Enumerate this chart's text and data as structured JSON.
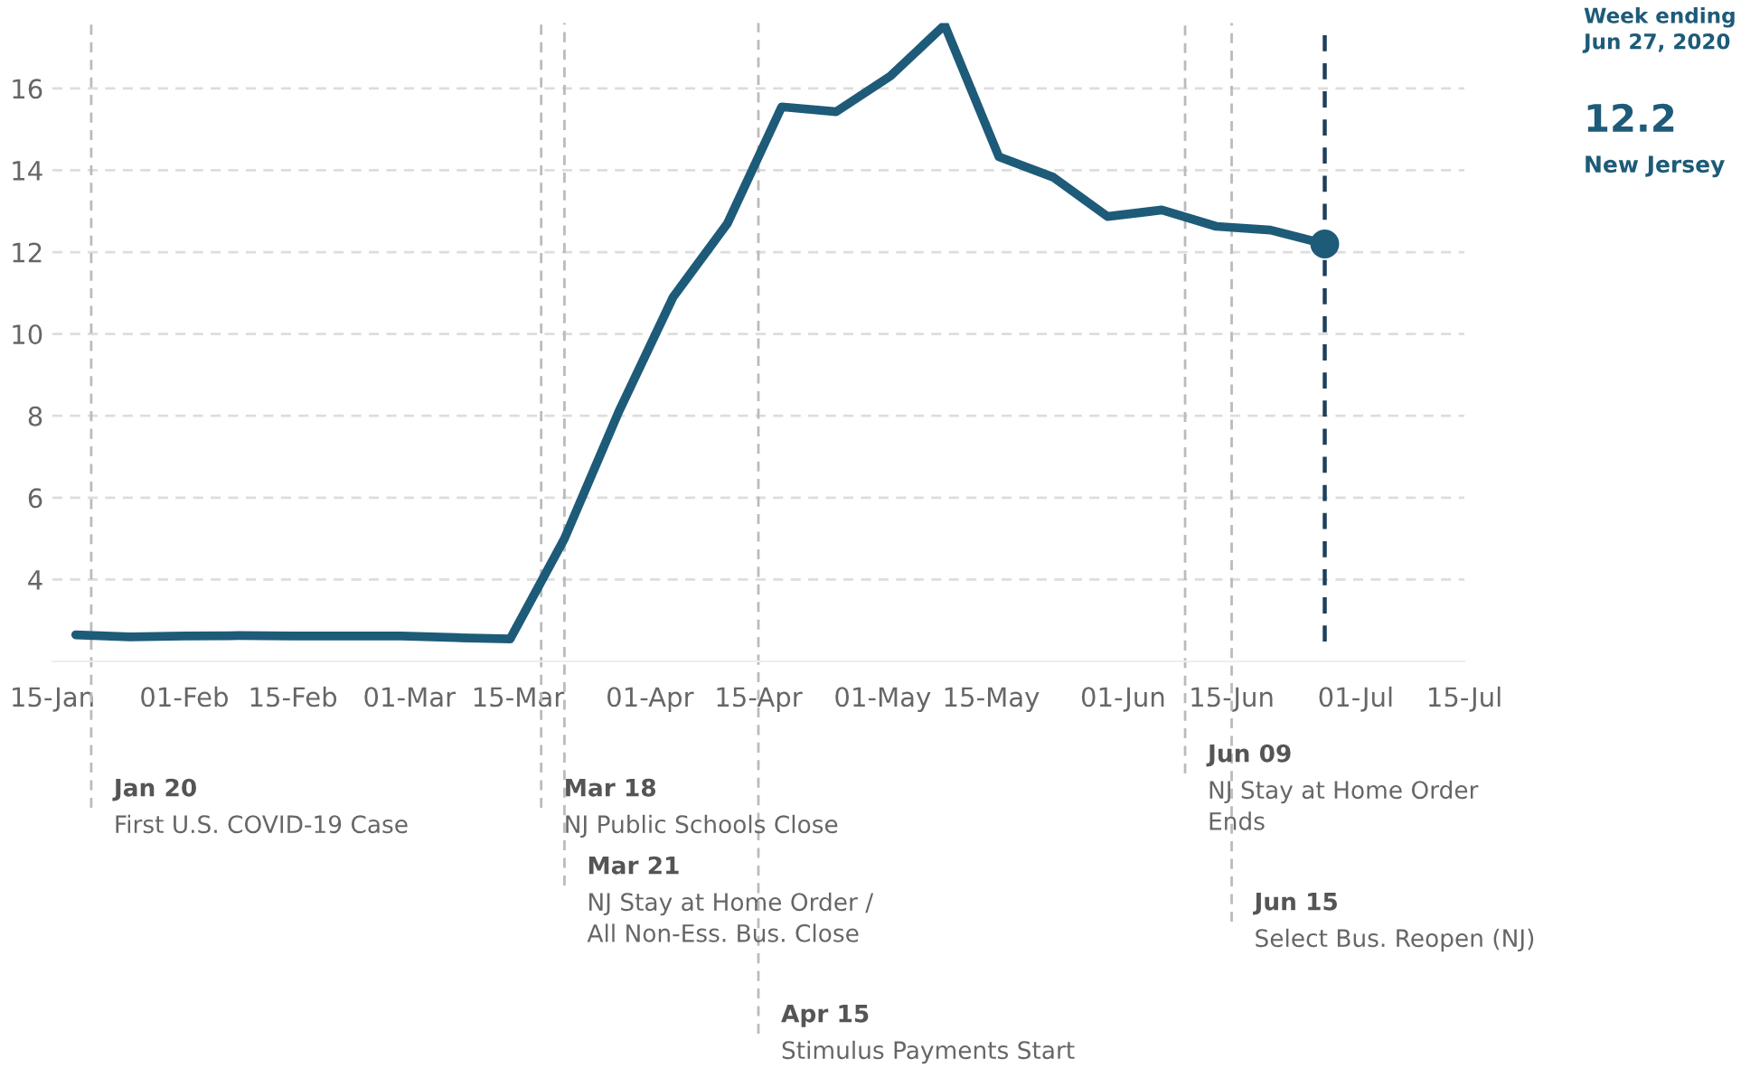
{
  "chart_data": {
    "type": "line",
    "x": [
      "2020-01-18",
      "2020-01-25",
      "2020-02-01",
      "2020-02-08",
      "2020-02-15",
      "2020-02-22",
      "2020-02-29",
      "2020-03-07",
      "2020-03-14",
      "2020-03-21",
      "2020-03-28",
      "2020-04-04",
      "2020-04-11",
      "2020-04-18",
      "2020-04-25",
      "2020-05-02",
      "2020-05-09",
      "2020-05-16",
      "2020-05-23",
      "2020-05-30",
      "2020-06-06",
      "2020-06-13",
      "2020-06-20",
      "2020-06-27"
    ],
    "series": [
      {
        "name": "New Jersey",
        "color": "#1d5b79",
        "values": [
          2.65,
          2.6,
          2.62,
          2.63,
          2.62,
          2.62,
          2.62,
          2.58,
          2.55,
          5.0,
          8.1,
          10.9,
          12.7,
          15.55,
          15.43,
          16.3,
          17.55,
          14.33,
          13.83,
          12.87,
          13.03,
          12.63,
          12.54,
          12.2
        ]
      },
      {
        "type": "scatter",
        "marker": "circle",
        "color": "#1d5b79",
        "x": [
          "2020-06-27"
        ],
        "values": [
          12.2
        ]
      }
    ],
    "xlim": [
      "2020-01-15",
      "2020-07-15"
    ],
    "xticks": [
      {
        "value": "2020-01-15",
        "label": "15-Jan"
      },
      {
        "value": "2020-02-01",
        "label": "01-Feb"
      },
      {
        "value": "2020-02-15",
        "label": "15-Feb"
      },
      {
        "value": "2020-03-01",
        "label": "01-Mar"
      },
      {
        "value": "2020-03-15",
        "label": "15-Mar"
      },
      {
        "value": "2020-04-01",
        "label": "01-Apr"
      },
      {
        "value": "2020-04-15",
        "label": "15-Apr"
      },
      {
        "value": "2020-05-01",
        "label": "01-May"
      },
      {
        "value": "2020-05-15",
        "label": "15-May"
      },
      {
        "value": "2020-06-01",
        "label": "01-Jun"
      },
      {
        "value": "2020-06-15",
        "label": "15-Jun"
      },
      {
        "value": "2020-07-01",
        "label": "01-Jul"
      },
      {
        "value": "2020-07-15",
        "label": "15-Jul"
      }
    ],
    "ylim": [
      2,
      17.6
    ],
    "yticks": [
      4,
      6,
      8,
      10,
      12,
      14,
      16
    ],
    "grid": "y",
    "ref_lines": [
      {
        "axis": "x",
        "value": "2020-01-20",
        "label": "Jan 20\nFirst U.S. COVID-19 Case",
        "color": "#bbbbbb",
        "line_style": "dashed"
      },
      {
        "axis": "x",
        "value": "2020-03-18",
        "label": "Mar 18\nNJ Public Schools Close",
        "color": "#bbbbbb",
        "line_style": "dashed"
      },
      {
        "axis": "x",
        "value": "2020-03-21",
        "label": "Mar 21\nNJ Stay at Home Order /\nAll Non-Ess. Bus. Close",
        "color": "#bbbbbb",
        "line_style": "dashed"
      },
      {
        "axis": "x",
        "value": "2020-04-15",
        "label": "Apr 15\nStimulus Payments Start",
        "color": "#bbbbbb",
        "line_style": "dashed"
      },
      {
        "axis": "x",
        "value": "2020-06-09",
        "label": "Jun 09\nNJ Stay at Home Order\nEnds",
        "color": "#bbbbbb",
        "line_style": "dashed"
      },
      {
        "axis": "x",
        "value": "2020-06-15",
        "label": "Jun 15\nSelect Bus. Reopen (NJ)",
        "color": "#bbbbbb",
        "line_style": "dashed"
      },
      {
        "axis": "x",
        "value": "2020-06-27",
        "color": "#1d3f5a",
        "line_style": "dashed"
      }
    ],
    "annotations": [
      "Week ending\nJun 27, 2020",
      "12.2"
    ]
  }
}
